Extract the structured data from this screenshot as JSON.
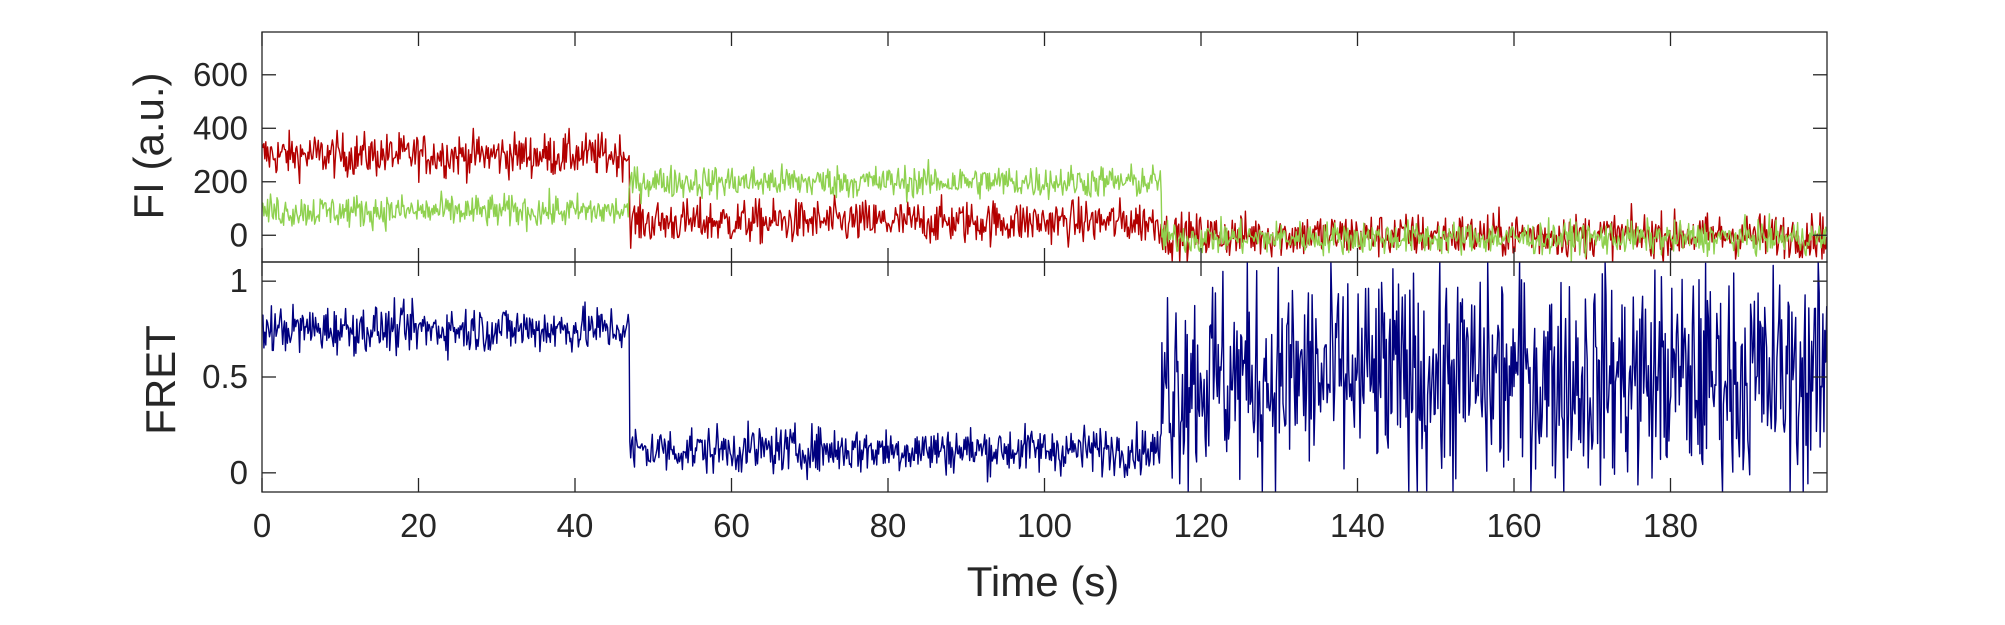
{
  "colors": {
    "acceptor": "#b30000",
    "donor": "#8fd14f",
    "fret": "#00007f",
    "axes": "#262626"
  },
  "chart_data": [
    {
      "type": "line",
      "panel": "top",
      "title": "",
      "xlabel": "",
      "ylabel": "FI (a.u.)",
      "xlim": [
        0,
        200
      ],
      "ylim": [
        -100,
        760
      ],
      "yticks": [
        0,
        200,
        400,
        600
      ],
      "ytick_labels": [
        "0",
        "200",
        "400",
        "600"
      ],
      "grid": false,
      "legend": "none",
      "series": [
        {
          "color": "#b30000",
          "noise": 80,
          "segments": [
            {
              "x": [
                0,
                47
              ],
              "y": 300
            },
            {
              "x": [
                47,
                115
              ],
              "y": 50
            },
            {
              "x": [
                115,
                200
              ],
              "y": 0
            }
          ]
        },
        {
          "color": "#8fd14f",
          "noise": 60,
          "segments": [
            {
              "x": [
                0,
                47
              ],
              "y": 90
            },
            {
              "x": [
                47,
                115
              ],
              "y": 200
            },
            {
              "x": [
                115,
                200
              ],
              "y": -10
            }
          ]
        }
      ]
    },
    {
      "type": "line",
      "panel": "bottom",
      "title": "",
      "xlabel": "Time (s)",
      "ylabel": "FRET",
      "xlim": [
        0,
        200
      ],
      "ylim": [
        -0.1,
        1.1
      ],
      "xticks": [
        0,
        20,
        40,
        60,
        80,
        100,
        120,
        140,
        160,
        180
      ],
      "xtick_labels": [
        "0",
        "20",
        "40",
        "60",
        "80",
        "100",
        "120",
        "140",
        "160",
        "180"
      ],
      "yticks": [
        0,
        0.5,
        1
      ],
      "ytick_labels": [
        "0",
        "0.5",
        "1"
      ],
      "grid": false,
      "legend": "none",
      "series": [
        {
          "color": "#00007f",
          "noise": 0.12,
          "segments": [
            {
              "x": [
                0,
                47
              ],
              "y": 0.75
            },
            {
              "x": [
                47,
                115
              ],
              "y": 0.12
            },
            {
              "x": [
                115,
                200
              ],
              "y": 0.5,
              "noise": 0.55
            }
          ]
        }
      ]
    }
  ]
}
